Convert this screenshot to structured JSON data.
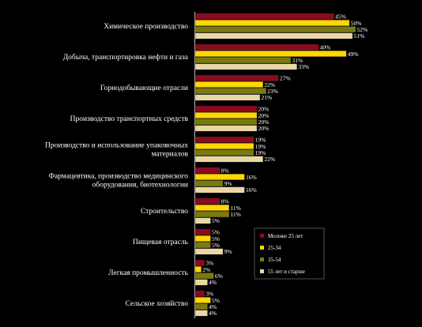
{
  "chart_data": {
    "type": "bar",
    "orientation": "horizontal",
    "categories": [
      [
        "Химическое производство"
      ],
      [
        "Добыча, транспортировка нефти и газа"
      ],
      [
        "Горнодобывающие отрасли"
      ],
      [
        "Производство транспортных средств"
      ],
      [
        "Производство и использование упаковочных",
        "материалов"
      ],
      [
        "Фармацевтика, производство медицинского",
        "оборудования, биотехнологии"
      ],
      [
        "Строительство"
      ],
      [
        "Пищевая отрасль"
      ],
      [
        "Легкая промышленность"
      ],
      [
        "Сельское хозяйство"
      ]
    ],
    "series": [
      {
        "name": "Моложе 25 лет",
        "color": "#8b0a1e",
        "values": [
          45,
          40,
          27,
          20,
          19,
          8,
          8,
          5,
          3,
          3
        ]
      },
      {
        "name": "25-34",
        "color": "#ffd700",
        "values": [
          50,
          49,
          22,
          20,
          19,
          16,
          11,
          5,
          2,
          5
        ]
      },
      {
        "name": "35-54",
        "color": "#7a7a10",
        "values": [
          52,
          31,
          23,
          20,
          19,
          9,
          11,
          5,
          6,
          4
        ]
      },
      {
        "name": "55 лет и старше",
        "color": "#ead7a6",
        "values": [
          51,
          33,
          21,
          20,
          22,
          16,
          5,
          9,
          4,
          4
        ]
      }
    ],
    "value_suffix": "%",
    "xlim": [
      0,
      52
    ],
    "grid": false,
    "legend_position": "bottom-right"
  }
}
